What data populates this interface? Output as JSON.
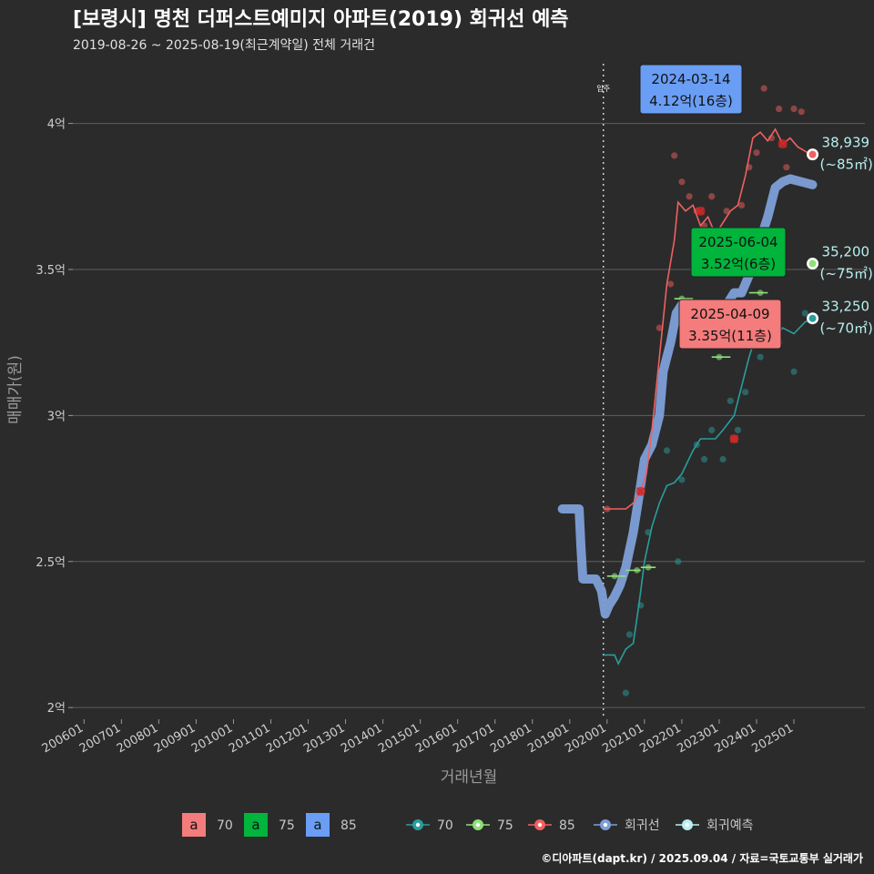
{
  "title": "[보령시] 명천 더퍼스트예미지 아파트(2019) 회귀선 예측",
  "subtitle": "2019-08-26 ~ 2025-08-19(최근계약일) 전체 거래건",
  "caption": "©디아파트(dapt.kr) / 2025.09.04 / 자료=국토교통부 실거래가",
  "colors": {
    "s70": "#2a9d9d",
    "s75": "#8ee07a",
    "s85": "#f06060",
    "reg": "#7d9fd8",
    "pred": "#b8f0f0",
    "bg": "#2b2b2b"
  },
  "chart_data": {
    "type": "line",
    "xlabel": "거래년월",
    "ylabel": "매매가(원)",
    "x_ticks": [
      "200601",
      "200701",
      "200801",
      "200901",
      "201001",
      "201101",
      "201201",
      "201301",
      "201401",
      "201501",
      "201601",
      "201701",
      "201801",
      "201901",
      "202001",
      "202101",
      "202201",
      "202301",
      "202401",
      "202501"
    ],
    "y_ticks": [
      {
        "value": 2.0,
        "label": "2억"
      },
      {
        "value": 2.5,
        "label": "2.5억"
      },
      {
        "value": 3.0,
        "label": "3억"
      },
      {
        "value": 3.5,
        "label": "3.5억"
      },
      {
        "value": 4.0,
        "label": "4억"
      }
    ],
    "xlim": [
      2005.7,
      2026.9
    ],
    "ylim": [
      1.96,
      4.22
    ],
    "move_in": {
      "x": 2019.9,
      "label": "입주"
    },
    "series": [
      {
        "name": "70",
        "color": "#2a9d9d",
        "line": [
          [
            2019.9,
            2.18
          ],
          [
            2020.2,
            2.18
          ],
          [
            2020.3,
            2.15
          ],
          [
            2020.5,
            2.2
          ],
          [
            2020.7,
            2.22
          ],
          [
            2020.85,
            2.35
          ],
          [
            2021.0,
            2.5
          ],
          [
            2021.2,
            2.62
          ],
          [
            2021.4,
            2.7
          ],
          [
            2021.6,
            2.76
          ],
          [
            2021.8,
            2.77
          ],
          [
            2022.0,
            2.8
          ],
          [
            2022.3,
            2.88
          ],
          [
            2022.5,
            2.92
          ],
          [
            2022.9,
            2.92
          ],
          [
            2023.1,
            2.95
          ],
          [
            2023.4,
            3.0
          ],
          [
            2023.6,
            3.1
          ],
          [
            2023.8,
            3.2
          ],
          [
            2024.0,
            3.28
          ],
          [
            2024.2,
            3.28
          ],
          [
            2024.4,
            3.25
          ],
          [
            2024.7,
            3.3
          ],
          [
            2025.0,
            3.28
          ],
          [
            2025.3,
            3.32
          ],
          [
            2025.5,
            3.33
          ]
        ],
        "points": [
          [
            2020.5,
            2.05
          ],
          [
            2020.6,
            2.25
          ],
          [
            2020.9,
            2.35
          ],
          [
            2021.1,
            2.6
          ],
          [
            2021.6,
            2.88
          ],
          [
            2021.9,
            2.5
          ],
          [
            2022.0,
            2.78
          ],
          [
            2022.4,
            2.9
          ],
          [
            2022.6,
            2.85
          ],
          [
            2022.8,
            2.95
          ],
          [
            2023.1,
            2.85
          ],
          [
            2023.3,
            3.05
          ],
          [
            2023.5,
            2.95
          ],
          [
            2023.7,
            3.08
          ],
          [
            2024.1,
            3.2
          ],
          [
            2024.3,
            3.3
          ],
          [
            2024.6,
            3.25
          ],
          [
            2025.0,
            3.15
          ],
          [
            2025.3,
            3.35
          ]
        ],
        "end_value": "33,250",
        "end_area": "(~70㎡)",
        "end_y": 3.3325
      },
      {
        "name": "75",
        "color": "#8ee07a",
        "segments": [
          [
            [
              2020.0,
              2.45
            ],
            [
              2020.5,
              2.45
            ]
          ],
          [
            [
              2020.5,
              2.47
            ],
            [
              2020.9,
              2.47
            ]
          ],
          [
            [
              2020.9,
              2.48
            ],
            [
              2021.3,
              2.48
            ]
          ],
          [
            [
              2021.8,
              3.4
            ],
            [
              2022.3,
              3.4
            ]
          ],
          [
            [
              2022.8,
              3.2
            ],
            [
              2023.3,
              3.2
            ]
          ],
          [
            [
              2023.8,
              3.42
            ],
            [
              2024.3,
              3.42
            ]
          ]
        ],
        "points": [
          [
            2020.2,
            2.45
          ],
          [
            2020.8,
            2.47
          ],
          [
            2021.1,
            2.48
          ],
          [
            2022.0,
            3.4
          ],
          [
            2023.0,
            3.2
          ],
          [
            2024.1,
            3.42
          ]
        ],
        "end_value": "35,200",
        "end_area": "(~75㎡)",
        "end_y": 3.52
      },
      {
        "name": "85",
        "color": "#f06060",
        "line": [
          [
            2019.9,
            2.68
          ],
          [
            2020.3,
            2.68
          ],
          [
            2020.5,
            2.68
          ],
          [
            2020.7,
            2.7
          ],
          [
            2020.9,
            2.74
          ],
          [
            2021.05,
            2.8
          ],
          [
            2021.2,
            2.95
          ],
          [
            2021.4,
            3.2
          ],
          [
            2021.6,
            3.45
          ],
          [
            2021.8,
            3.6
          ],
          [
            2021.9,
            3.73
          ],
          [
            2022.1,
            3.7
          ],
          [
            2022.3,
            3.72
          ],
          [
            2022.5,
            3.65
          ],
          [
            2022.7,
            3.68
          ],
          [
            2022.9,
            3.62
          ],
          [
            2023.1,
            3.66
          ],
          [
            2023.3,
            3.7
          ],
          [
            2023.5,
            3.72
          ],
          [
            2023.7,
            3.82
          ],
          [
            2023.9,
            3.95
          ],
          [
            2024.1,
            3.97
          ],
          [
            2024.3,
            3.94
          ],
          [
            2024.5,
            3.98
          ],
          [
            2024.7,
            3.93
          ],
          [
            2024.9,
            3.95
          ],
          [
            2025.1,
            3.92
          ],
          [
            2025.5,
            3.89
          ]
        ],
        "points": [
          [
            2020.0,
            2.68
          ],
          [
            2020.9,
            2.74
          ],
          [
            2021.2,
            2.9
          ],
          [
            2021.4,
            3.3
          ],
          [
            2021.7,
            3.45
          ],
          [
            2021.8,
            3.89
          ],
          [
            2022.0,
            3.8
          ],
          [
            2022.2,
            3.75
          ],
          [
            2022.4,
            3.7
          ],
          [
            2022.6,
            3.65
          ],
          [
            2022.8,
            3.75
          ],
          [
            2023.0,
            3.6
          ],
          [
            2023.2,
            3.7
          ],
          [
            2023.4,
            2.92
          ],
          [
            2023.6,
            3.72
          ],
          [
            2023.8,
            3.85
          ],
          [
            2024.0,
            3.9
          ],
          [
            2024.2,
            4.12
          ],
          [
            2024.4,
            3.95
          ],
          [
            2024.6,
            4.05
          ],
          [
            2024.8,
            3.85
          ],
          [
            2025.0,
            4.05
          ],
          [
            2025.2,
            4.04
          ]
        ],
        "x_marks": [
          [
            2020.9,
            2.74
          ],
          [
            2022.5,
            3.7
          ],
          [
            2023.4,
            2.92
          ],
          [
            2024.7,
            3.93
          ]
        ],
        "end_value": "38,939",
        "end_area": "(~85㎡)",
        "end_y": 3.8939
      },
      {
        "name": "회귀선",
        "color": "#7d9fd8",
        "line": [
          [
            2018.8,
            2.68
          ],
          [
            2019.1,
            2.68
          ],
          [
            2019.25,
            2.68
          ],
          [
            2019.3,
            2.55
          ],
          [
            2019.35,
            2.44
          ],
          [
            2019.7,
            2.44
          ],
          [
            2019.85,
            2.4
          ],
          [
            2019.95,
            2.32
          ],
          [
            2020.05,
            2.35
          ],
          [
            2020.2,
            2.38
          ],
          [
            2020.35,
            2.42
          ],
          [
            2020.5,
            2.48
          ],
          [
            2020.7,
            2.6
          ],
          [
            2020.85,
            2.72
          ],
          [
            2021.0,
            2.85
          ],
          [
            2021.2,
            2.9
          ],
          [
            2021.4,
            3.0
          ],
          [
            2021.5,
            3.15
          ],
          [
            2021.7,
            3.25
          ],
          [
            2021.85,
            3.35
          ],
          [
            2022.0,
            3.38
          ],
          [
            2022.2,
            3.38
          ],
          [
            2022.4,
            3.35
          ],
          [
            2022.6,
            3.32
          ],
          [
            2022.8,
            3.35
          ],
          [
            2023.0,
            3.32
          ],
          [
            2023.2,
            3.38
          ],
          [
            2023.4,
            3.42
          ],
          [
            2023.6,
            3.42
          ],
          [
            2023.8,
            3.48
          ],
          [
            2024.0,
            3.55
          ],
          [
            2024.15,
            3.62
          ],
          [
            2024.3,
            3.68
          ],
          [
            2024.5,
            3.78
          ],
          [
            2024.7,
            3.8
          ],
          [
            2024.9,
            3.81
          ],
          [
            2025.2,
            3.8
          ],
          [
            2025.5,
            3.79
          ]
        ]
      },
      {
        "name": "회귀예측",
        "color": "#b8f0f0"
      }
    ],
    "annotations": [
      {
        "date": "2024-03-14",
        "price": "4.12억(16층)",
        "fill": "#6a9ef5"
      },
      {
        "date": "2025-06-04",
        "price": "3.52억(6층)",
        "fill": "#00b43c"
      },
      {
        "date": "2025-04-09",
        "price": "3.35억(11층)",
        "fill": "#f47c7c"
      }
    ],
    "legend": {
      "position": "bottom",
      "text_items": [
        {
          "glyph": "a",
          "label": "70",
          "fill": "#f47c7c"
        },
        {
          "glyph": "a",
          "label": "75",
          "fill": "#00b43c"
        },
        {
          "glyph": "a",
          "label": "85",
          "fill": "#6a9ef5"
        }
      ],
      "line_items": [
        {
          "label": "70",
          "color": "#2a9d9d"
        },
        {
          "label": "75",
          "color": "#8ee07a"
        },
        {
          "label": "85",
          "color": "#f06060"
        },
        {
          "label": "회귀선",
          "color": "#7d9fd8"
        },
        {
          "label": "회귀예측",
          "color": "#b8f0f0"
        }
      ]
    }
  }
}
